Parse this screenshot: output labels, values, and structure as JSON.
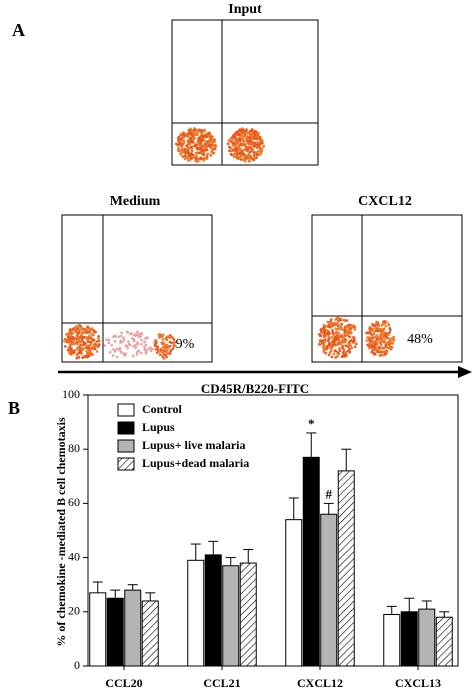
{
  "panel_a": {
    "label": "A",
    "axis_label": "CD45R/B220-FITC",
    "plots": [
      {
        "title": "Input"
      },
      {
        "title": "Medium",
        "percent": "9%"
      },
      {
        "title": "CXCL12",
        "percent": "48%"
      }
    ]
  },
  "chart_data": {
    "type": "bar",
    "panel_label": "B",
    "ylabel": "% of chemokine -mediated B cell chemotaxis",
    "categories": [
      "CCL20",
      "CCL21",
      "CXCL12",
      "CXCL13"
    ],
    "ylim": [
      0,
      100
    ],
    "yticks": [
      0,
      20,
      40,
      60,
      80,
      100
    ],
    "series": [
      {
        "name": "Control",
        "color": "#ffffff",
        "values": [
          27,
          39,
          54,
          19
        ],
        "errors": [
          4,
          6,
          8,
          3
        ]
      },
      {
        "name": "Lupus",
        "color": "#000000",
        "values": [
          25,
          41,
          77,
          20
        ],
        "errors": [
          3,
          5,
          9,
          5
        ]
      },
      {
        "name": "Lupus+ live malaria",
        "color": "#b4b4b4",
        "values": [
          28,
          37,
          56,
          21
        ],
        "errors": [
          2,
          3,
          4,
          3
        ]
      },
      {
        "name": "Lupus+dead malaria",
        "color": "#ffffff",
        "pattern": "hatch",
        "values": [
          24,
          38,
          72,
          18
        ],
        "errors": [
          3,
          5,
          8,
          2
        ]
      }
    ],
    "annotations": [
      {
        "text": "*",
        "series": 1,
        "category": 2
      },
      {
        "text": "#",
        "series": 2,
        "category": 2
      }
    ]
  }
}
